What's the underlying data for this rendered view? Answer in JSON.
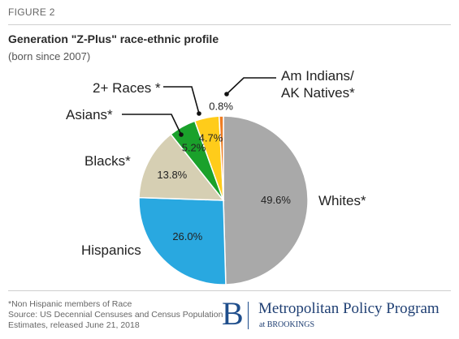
{
  "figure_label": "FIGURE 2",
  "chart_data": {
    "type": "pie",
    "title": "Generation \"Z-Plus\" race-ethnic profile",
    "subtitle": "(born since 2007)",
    "slices": [
      {
        "name": "Whites*",
        "value": 49.6,
        "label": "49.6%",
        "color": "#a9a9a9"
      },
      {
        "name": "Hispanics",
        "value": 26.0,
        "label": "26.0%",
        "color": "#29a8e0"
      },
      {
        "name": "Blacks*",
        "value": 13.8,
        "label": "13.8%",
        "color": "#d6cfb3"
      },
      {
        "name": "Asians*",
        "value": 5.2,
        "label": "5.2%",
        "color": "#1aa12b"
      },
      {
        "name": "2+ Races *",
        "value": 4.7,
        "label": "4.7%",
        "color": "#ffcc1a"
      },
      {
        "name": "Am Indians/ AK Natives*",
        "name_lines": [
          "Am Indians/",
          "AK Natives*"
        ],
        "value": 0.8,
        "label": "0.8%",
        "color": "#ef7d22"
      }
    ]
  },
  "footnote": "*Non Hispanic members of Race",
  "source_lines": [
    "Source: US Decennial Censuses and Census Population",
    "Estimates, released June 21, 2018"
  ],
  "logo": {
    "letter": "B",
    "name": "Metropolitan Policy Program",
    "sub": "at BROOKINGS"
  }
}
